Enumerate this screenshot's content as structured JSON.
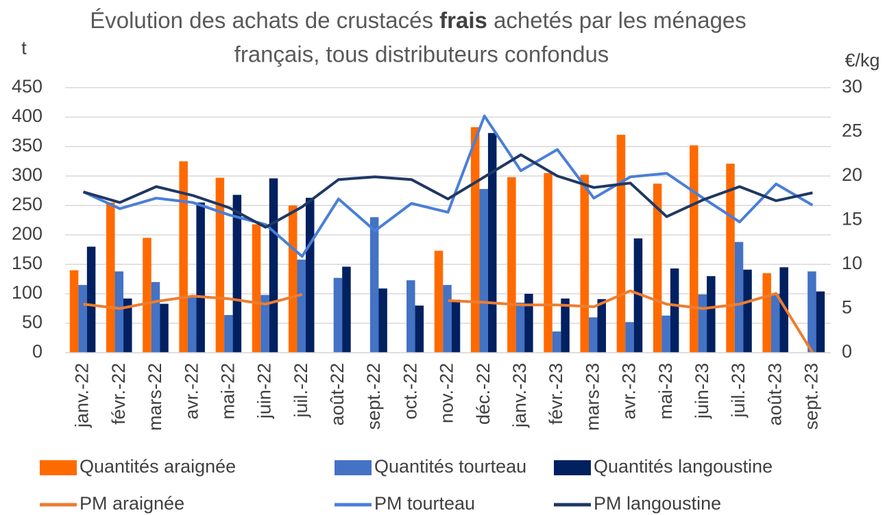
{
  "chart_data": {
    "type": "bar-line",
    "title": {
      "line1": [
        "Évolution des achats de crustacés",
        "frais",
        "achetés par les ménages"
      ],
      "line2": "français, tous distributeurs confondus"
    },
    "y_label": "t",
    "y2_label": "€/kg",
    "categories": [
      "janv.-22",
      "févr.-22",
      "mars-22",
      "avr.-22",
      "mai-22",
      "juin-22",
      "juil.-22",
      "août-22",
      "sept.-22",
      "oct.-22",
      "nov.-22",
      "déc.-22",
      "janv.-23",
      "févr.-23",
      "mars-23",
      "avr.-23",
      "mai-23",
      "juin-23",
      "juil.-23",
      "août-23",
      "sept.-23"
    ],
    "ylim": [
      0,
      450
    ],
    "yticks": [
      0,
      50,
      100,
      150,
      200,
      250,
      300,
      350,
      400,
      450
    ],
    "y2lim": [
      0,
      30
    ],
    "y2ticks": [
      0,
      5,
      10,
      15,
      20,
      25,
      30
    ],
    "grid": true,
    "legend": "bottom",
    "series": [
      {
        "name": "Quantités araignée",
        "kind": "bar",
        "color": "#ff6a00",
        "values": [
          140,
          255,
          195,
          325,
          297,
          218,
          250,
          null,
          null,
          null,
          173,
          383,
          298,
          305,
          302,
          370,
          287,
          352,
          321,
          135,
          0
        ]
      },
      {
        "name": "Quantités tourteau",
        "kind": "bar",
        "color": "#4472c4",
        "values": [
          115,
          138,
          120,
          95,
          64,
          98,
          158,
          127,
          230,
          123,
          115,
          278,
          85,
          36,
          60,
          52,
          63,
          99,
          188,
          100,
          138
        ]
      },
      {
        "name": "Quantités langoustine",
        "kind": "bar",
        "color": "#002060",
        "values": [
          180,
          92,
          83,
          255,
          268,
          296,
          263,
          146,
          109,
          80,
          90,
          373,
          100,
          92,
          91,
          194,
          143,
          130,
          141,
          145,
          104
        ]
      },
      {
        "name": "PM araignée",
        "kind": "line",
        "axis": "y2",
        "color": "#ed7d31",
        "values": [
          5.5,
          5.0,
          5.8,
          6.4,
          6.1,
          5.5,
          6.6,
          null,
          null,
          null,
          5.9,
          5.7,
          5.4,
          5.4,
          5.2,
          7.0,
          5.5,
          5.0,
          5.5,
          6.7,
          0
        ]
      },
      {
        "name": "PM tourteau",
        "kind": "line",
        "axis": "y2",
        "color": "#4a7fd8",
        "values": [
          18.2,
          16.3,
          17.5,
          17.0,
          15.6,
          14.5,
          10.9,
          17.4,
          13.8,
          16.9,
          15.9,
          26.8,
          20.6,
          23.0,
          17.5,
          19.9,
          20.3,
          17.5,
          14.8,
          19.1,
          16.7
        ]
      },
      {
        "name": "PM langoustine",
        "kind": "line",
        "axis": "y2",
        "color": "#1f3864",
        "values": [
          18.2,
          17.0,
          18.8,
          17.8,
          16.4,
          14.2,
          16.5,
          19.6,
          19.9,
          19.6,
          17.4,
          19.9,
          22.4,
          20.0,
          18.7,
          19.2,
          15.4,
          17.3,
          18.8,
          17.2,
          18.1
        ]
      }
    ]
  }
}
